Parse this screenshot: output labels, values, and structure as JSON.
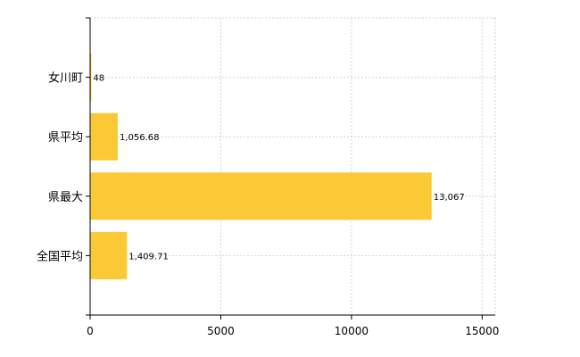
{
  "chart_data": {
    "type": "bar",
    "orientation": "horizontal",
    "categories": [
      "女川町",
      "県平均",
      "県最大",
      "全国平均"
    ],
    "values": [
      48,
      1056.68,
      13067,
      1409.71
    ],
    "value_labels": [
      "48",
      "1,056.68",
      "13,067",
      "1,409.71"
    ],
    "xlim": [
      0,
      15500
    ],
    "xticks": [
      0,
      5000,
      10000,
      15000
    ],
    "xtick_labels": [
      "0",
      "5000",
      "10000",
      "15000"
    ],
    "grid": true,
    "bar_color": "#fbc936",
    "legend": "none"
  }
}
